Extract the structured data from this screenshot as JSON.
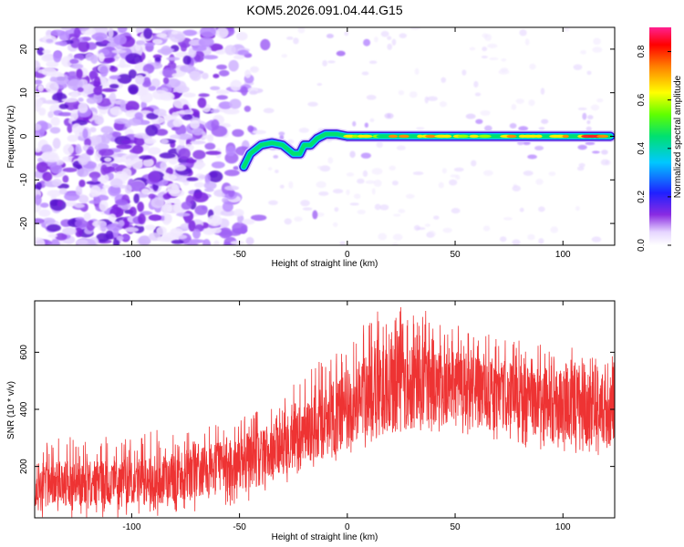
{
  "figure": {
    "title": "KOM5.2026.091.04.44.G15"
  },
  "chart_data": [
    {
      "type": "heatmap",
      "title": "KOM5.2026.091.04.44.G15",
      "xlabel": "Height of straight line (km)",
      "ylabel": "Frequency (Hz)",
      "xlim": [
        -145,
        124
      ],
      "ylim": [
        -25,
        25
      ],
      "xticks": [
        -100,
        -50,
        0,
        50,
        100
      ],
      "yticks": [
        -20,
        -10,
        0,
        10,
        20
      ],
      "xtick_labels": [
        "-100",
        "-50",
        "0",
        "50",
        "100"
      ],
      "ytick_labels": [
        "-20",
        "-10",
        "0",
        "10",
        "20"
      ],
      "grid": false,
      "colorbar": {
        "label": "Normalized spectral amplitude",
        "range": [
          0,
          0.9
        ],
        "ticks": [
          0.0,
          0.2,
          0.4,
          0.6,
          0.8
        ],
        "tick_labels": [
          "0.0",
          "0.2",
          "0.4",
          "0.6",
          "0.8"
        ],
        "colormap": "rainbow (white-violet-blue-cyan-green-yellow-red-magenta)"
      },
      "ridge": {
        "description": "dominant frequency trace",
        "x": [
          -48,
          -45,
          -40,
          -35,
          -30,
          -25,
          -22,
          -20,
          -17,
          -14,
          -10,
          -5,
          0,
          5,
          10,
          20,
          30,
          40,
          50,
          60,
          70,
          80,
          90,
          100,
          110,
          122
        ],
        "y": [
          -7,
          -4,
          -2,
          -1.5,
          -2,
          -4,
          -4,
          -2,
          -2,
          -0.5,
          0.5,
          0.5,
          0,
          0,
          0,
          0,
          0,
          0,
          0,
          0,
          0,
          0,
          0,
          0,
          0,
          0
        ],
        "amplitude": [
          0.45,
          0.5,
          0.45,
          0.45,
          0.45,
          0.45,
          0.45,
          0.4,
          0.45,
          0.5,
          0.5,
          0.5,
          0.6,
          0.6,
          0.55,
          0.75,
          0.7,
          0.65,
          0.65,
          0.65,
          0.7,
          0.65,
          0.65,
          0.7,
          0.85,
          0.85
        ]
      }
    },
    {
      "type": "line",
      "xlabel": "Height of straight line (km)",
      "ylabel": "SNR (10 * v/v)",
      "xlim": [
        -145,
        124
      ],
      "ylim": [
        20,
        780
      ],
      "xticks": [
        -100,
        -50,
        0,
        50,
        100
      ],
      "yticks": [
        200,
        400,
        600
      ],
      "xtick_labels": [
        "-100",
        "-50",
        "0",
        "50",
        "100"
      ],
      "ytick_labels": [
        "200",
        "400",
        "600"
      ],
      "grid": false,
      "color": "#ee3333",
      "series": [
        {
          "envelope_x": [
            -145,
            -120,
            -100,
            -80,
            -60,
            -50,
            -40,
            -30,
            -20,
            -10,
            0,
            10,
            20,
            30,
            40,
            50,
            60,
            70,
            80,
            90,
            100,
            110,
            124
          ],
          "envelope_low": [
            80,
            80,
            80,
            90,
            110,
            130,
            140,
            190,
            240,
            270,
            290,
            330,
            350,
            370,
            370,
            380,
            360,
            340,
            330,
            310,
            300,
            290,
            290
          ],
          "envelope_high": [
            230,
            230,
            230,
            260,
            290,
            300,
            330,
            380,
            440,
            520,
            560,
            640,
            700,
            690,
            670,
            620,
            600,
            580,
            560,
            550,
            540,
            540,
            520
          ],
          "median_x": [
            -145,
            -120,
            -100,
            -80,
            -60,
            -50,
            -40,
            -30,
            -20,
            -10,
            0,
            10,
            20,
            30,
            40,
            50,
            60,
            70,
            80,
            90,
            100,
            110,
            124
          ],
          "median_y": [
            140,
            140,
            145,
            160,
            190,
            210,
            230,
            270,
            320,
            360,
            400,
            460,
            500,
            500,
            490,
            480,
            460,
            450,
            440,
            430,
            420,
            410,
            400
          ]
        }
      ]
    }
  ]
}
